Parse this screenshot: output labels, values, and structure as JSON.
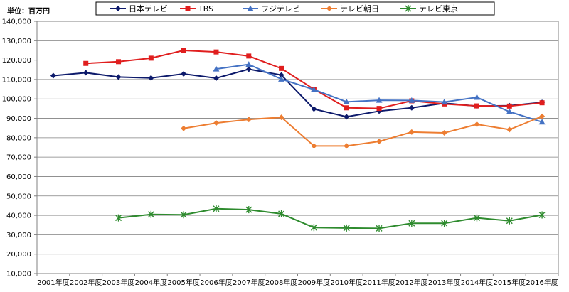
{
  "chart_data": {
    "type": "line",
    "unit_label": "単位：百万円",
    "categories": [
      "2001年度",
      "2002年度",
      "2003年度",
      "2004年度",
      "2005年度",
      "2006年度",
      "2007年度",
      "2008年度",
      "2009年度",
      "2010年度",
      "2011年度",
      "2012年度",
      "2013年度",
      "2014年度",
      "2015年度",
      "2016年度"
    ],
    "ylim": [
      10000,
      140000
    ],
    "yticks": [
      10000,
      20000,
      30000,
      40000,
      50000,
      60000,
      70000,
      80000,
      90000,
      100000,
      110000,
      120000,
      130000,
      140000
    ],
    "ytick_labels": [
      "10,000",
      "20,000",
      "30,000",
      "40,000",
      "50,000",
      "60,000",
      "70,000",
      "80,000",
      "90,000",
      "100,000",
      "110,000",
      "120,000",
      "130,000",
      "140,000"
    ],
    "legend_position": "top",
    "grid": "horizontal",
    "series": [
      {
        "name": "日本テレビ",
        "color": "#0d1a6b",
        "marker": "diamond",
        "values": [
          112000,
          113500,
          111300,
          110800,
          112900,
          110700,
          115300,
          112300,
          94800,
          90800,
          93700,
          95400,
          97800,
          96300,
          96500,
          98200
        ]
      },
      {
        "name": "TBS",
        "color": "#e01e1e",
        "marker": "square",
        "values": [
          null,
          118300,
          119200,
          121000,
          125000,
          124200,
          122100,
          115700,
          105000,
          95400,
          95100,
          99000,
          97400,
          96400,
          96300,
          98000
        ]
      },
      {
        "name": "フジテレビ",
        "color": "#4472c4",
        "marker": "triangle",
        "values": [
          null,
          null,
          null,
          null,
          null,
          115400,
          117800,
          110200,
          104800,
          98500,
          99300,
          99200,
          98400,
          100800,
          93400,
          88100
        ]
      },
      {
        "name": "テレビ朝日",
        "color": "#ed7d31",
        "marker": "diamond",
        "values": [
          null,
          null,
          null,
          null,
          84800,
          87600,
          89400,
          90500,
          75800,
          75800,
          78100,
          82900,
          82500,
          86900,
          84200,
          91000
        ]
      },
      {
        "name": "テレビ東京",
        "color": "#2e8b2e",
        "marker": "star",
        "values": [
          null,
          null,
          38700,
          40500,
          40300,
          43400,
          42900,
          40800,
          33700,
          33500,
          33300,
          35900,
          35900,
          38700,
          37200,
          40200
        ]
      }
    ]
  }
}
